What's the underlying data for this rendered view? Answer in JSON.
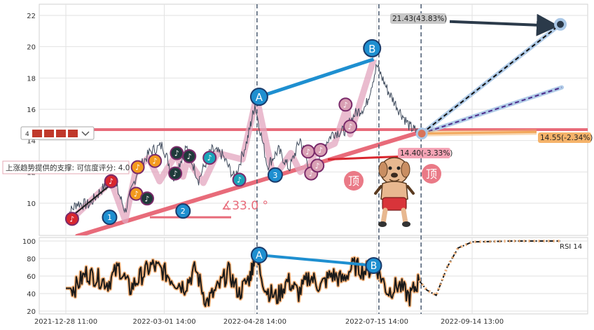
{
  "colors": {
    "price": "#3e4a5c",
    "wave_fill": "#e3a6bf",
    "wave_line": "#c97a9a",
    "support": "#e86b7a",
    "abline": "#1e8fd0",
    "target_dark": "#2b3a4a",
    "target_light": "#a9c7e6",
    "purple_dash": "#4b2a8a",
    "orange": "#f0a050",
    "vline": "#4a5a70",
    "rsi": "#1a1a1a",
    "rsi_halo": "#f4b27a",
    "note_teal": "#1aa3b8",
    "note_orange": "#f39a1e",
    "note_dark": "#1f3a3a",
    "note_pink": "#d9a0b4",
    "note_red": "#d8262e",
    "badge_gray": "#c8c8c8",
    "badge_pink": "#f4a3b5",
    "badge_orange": "#f5b36a"
  },
  "chart_data": [
    {
      "type": "line",
      "panel": "price",
      "yticks": [
        10,
        12,
        14,
        16,
        18,
        20,
        22
      ],
      "ylim": [
        8,
        22.7
      ],
      "grid": true,
      "series": [
        {
          "x": [
            "2021-12-28",
            "2022-01-04",
            "2022-01-12",
            "2022-01-20",
            "2022-01-28",
            "2022-02-04",
            "2022-02-12",
            "2022-02-20",
            "2022-02-28",
            "2022-03-07",
            "2022-03-15",
            "2022-03-23",
            "2022-03-31",
            "2022-04-07",
            "2022-04-15",
            "2022-04-23",
            "2022-04-28",
            "2022-05-06",
            "2022-05-13",
            "2022-05-20",
            "2022-05-27",
            "2022-06-03",
            "2022-06-10",
            "2022-06-17",
            "2022-06-24",
            "2022-07-01",
            "2022-07-08",
            "2022-07-15",
            "2022-07-22",
            "2022-07-29",
            "2022-08-05",
            "2022-08-11"
          ],
          "y": [
            9.1,
            10.0,
            9.9,
            10.9,
            11.4,
            9.5,
            12.1,
            13.3,
            13.7,
            11.6,
            13.6,
            11.5,
            13.4,
            13.1,
            11.6,
            14.0,
            16.3,
            12.4,
            13.4,
            12.2,
            14.1,
            11.8,
            13.5,
            14.5,
            14.6,
            15.7,
            16.2,
            18.8,
            17.2,
            16.0,
            14.9,
            14.45
          ]
        }
      ],
      "wave_points": [
        {
          "date": "2022-01-01",
          "value": 9.0
        },
        {
          "date": "2022-01-26",
          "value": 11.4
        },
        {
          "date": "2022-02-04",
          "value": 8.9
        },
        {
          "date": "2022-02-11",
          "value": 12.2
        },
        {
          "date": "2022-02-19",
          "value": 12.9
        },
        {
          "date": "2022-02-26",
          "value": 11.4
        },
        {
          "date": "2022-03-09",
          "value": 13.2
        },
        {
          "date": "2022-03-13",
          "value": 11.7
        },
        {
          "date": "2022-03-16",
          "value": 12.8
        },
        {
          "date": "2022-03-26",
          "value": 11.3
        },
        {
          "date": "2022-04-04",
          "value": 13.2
        },
        {
          "date": "2022-04-20",
          "value": 12.8
        },
        {
          "date": "2022-04-29",
          "value": 16.8
        },
        {
          "date": "2022-05-10",
          "value": 11.6
        },
        {
          "date": "2022-05-21",
          "value": 13.2
        },
        {
          "date": "2022-05-27",
          "value": 12.0
        },
        {
          "date": "2022-06-02",
          "value": 12.5
        },
        {
          "date": "2022-06-06",
          "value": 13.3
        },
        {
          "date": "2022-06-18",
          "value": 13.8
        },
        {
          "date": "2022-06-26",
          "value": 16.2
        },
        {
          "date": "2022-06-28",
          "value": 14.4
        },
        {
          "date": "2022-07-13",
          "value": 19.2
        }
      ],
      "wave_labels": [
        "1",
        "2",
        "3",
        "A",
        "B"
      ],
      "indicator_marks": [
        "顶",
        "顶"
      ],
      "horizontal_level": 14.7,
      "support_text": "上涨趋势提供的支撑: 可信度评分: 4.0",
      "angle_text": "∡33.0 °",
      "annotations": [
        {
          "text": "21.43(43.83%)",
          "value": 21.43
        },
        {
          "text": "14.55(-2.34%)",
          "value": 14.55
        },
        {
          "text": "14.40(-3.33%)",
          "value": 14.4
        }
      ],
      "legend_stub": "4"
    },
    {
      "type": "line",
      "panel": "indicator",
      "name": "RSI 14",
      "yticks": [
        20,
        40,
        60,
        80,
        100
      ],
      "ylim": [
        18,
        104
      ],
      "grid": true,
      "series": [
        {
          "name": "RSI 14",
          "x": [
            "2021-12-28",
            "2022-01-03",
            "2022-01-10",
            "2022-01-17",
            "2022-01-24",
            "2022-01-31",
            "2022-02-07",
            "2022-02-14",
            "2022-02-21",
            "2022-02-28",
            "2022-03-07",
            "2022-03-14",
            "2022-03-21",
            "2022-03-28",
            "2022-04-04",
            "2022-04-11",
            "2022-04-18",
            "2022-04-25",
            "2022-04-28",
            "2022-05-05",
            "2022-05-12",
            "2022-05-19",
            "2022-05-26",
            "2022-06-02",
            "2022-06-09",
            "2022-06-16",
            "2022-06-23",
            "2022-06-30",
            "2022-07-07",
            "2022-07-15",
            "2022-07-22",
            "2022-07-29",
            "2022-08-05",
            "2022-08-11",
            "2022-08-16",
            "2022-08-22",
            "2022-08-29",
            "2022-09-05",
            "2022-09-14",
            "2022-10-10",
            "2022-11-07"
          ],
          "y": [
            46,
            47,
            63,
            58,
            52,
            70,
            45,
            60,
            72,
            66,
            55,
            48,
            68,
            30,
            45,
            65,
            40,
            60,
            85,
            45,
            35,
            55,
            40,
            60,
            48,
            62,
            55,
            72,
            66,
            70,
            42,
            50,
            36,
            55,
            44,
            38,
            70,
            92,
            99,
            100,
            100
          ]
        }
      ],
      "a_b_labels": [
        "A",
        "B"
      ]
    }
  ],
  "x_axis": {
    "ticks": [
      "2021-12-28 11:00",
      "2022-03-01 14:00",
      "2022-04-28 14:00",
      "2022-07-15 14:00",
      "2022-09-14 13:00"
    ]
  },
  "sticker": "cartoon-dog",
  "note_glyph": "♪"
}
